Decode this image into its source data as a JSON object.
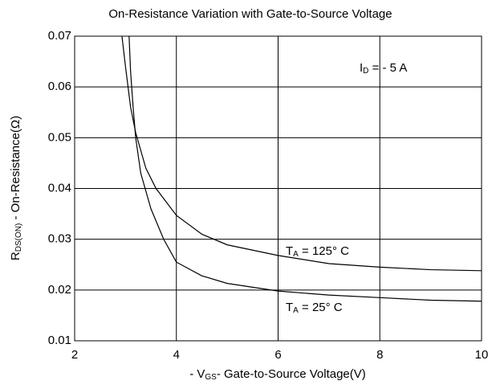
{
  "chart_data": {
    "type": "line",
    "title": "On-Resistance Variation with Gate-to-Source Voltage",
    "x_label": [
      "- V",
      "GS",
      "- Gate-to-Source Voltage(V)"
    ],
    "y_label": [
      "R",
      "DS(ON)",
      " - On-Resistance(Ω)"
    ],
    "xlim": [
      2,
      10
    ],
    "xticks": [
      2,
      4,
      6,
      8,
      10
    ],
    "ylim": [
      0.01,
      0.07
    ],
    "yticks": [
      0.01,
      0.02,
      0.03,
      0.04,
      0.05,
      0.06,
      0.07
    ],
    "grid": true,
    "series": [
      {
        "color": "#000000",
        "x": [
          2.93,
          3.0,
          3.1,
          3.2,
          3.4,
          3.6,
          4.0,
          4.5,
          5,
          6,
          7,
          8,
          9,
          10
        ],
        "values": [
          0.07,
          0.064,
          0.056,
          0.051,
          0.044,
          0.04,
          0.0347,
          0.031,
          0.0289,
          0.0268,
          0.0252,
          0.0245,
          0.024,
          0.0238
        ]
      },
      {
        "color": "#000000",
        "x": [
          3.07,
          3.1,
          3.15,
          3.2,
          3.3,
          3.5,
          3.75,
          4,
          4.5,
          5,
          6,
          7,
          8,
          9,
          10
        ],
        "values": [
          0.07,
          0.063,
          0.056,
          0.05,
          0.043,
          0.036,
          0.03,
          0.0255,
          0.0228,
          0.0213,
          0.0198,
          0.019,
          0.0185,
          0.018,
          0.0178
        ]
      }
    ],
    "annotations": [
      [
        "I",
        "D",
        " = - 5 A"
      ],
      [
        "T",
        "A",
        " = 125° C"
      ],
      [
        "T",
        "A",
        " = 25° C"
      ]
    ]
  }
}
